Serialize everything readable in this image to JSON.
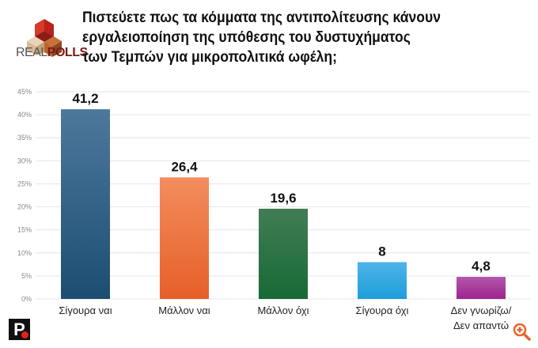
{
  "logo": {
    "text_light": "REAL",
    "text_bold": "POLLS"
  },
  "title": "Πιστεύετε πως τα κόμματα της αντιπολίτευσης κάνουν\nεργαλειοποίηση της υπόθεσης του δυστυχήματος\nτων Τεμπών για μικροπολιτικά ωφέλη;",
  "publisher_logo": "P",
  "zoom_icon": "zoom-in-icon",
  "chart_data": {
    "type": "bar",
    "title": "Πιστεύετε πως τα κόμματα της αντιπολίτευσης κάνουν εργαλειοποίηση της υπόθεσης του δυστυχήματος των Τεμπών για μικροπολιτικά ωφέλη;",
    "categories": [
      "Σίγουρα ναι",
      "Μάλλον ναι",
      "Μάλλον όχι",
      "Σίγουρα όχι",
      "Δεν γνωρίζω/\nΔεν απαντώ"
    ],
    "values": [
      41.2,
      26.4,
      19.6,
      8,
      4.8
    ],
    "data_labels": [
      "41,2",
      "26,4",
      "19,6",
      "8",
      "4,8"
    ],
    "colors": [
      [
        "#4d789c",
        "#1c4e72"
      ],
      [
        "#f28d5e",
        "#e75f28"
      ],
      [
        "#417d54",
        "#186a36"
      ],
      [
        "#4fb3e8",
        "#1c9edb"
      ],
      [
        "#b356ab",
        "#9e248e"
      ]
    ],
    "ylim": [
      0,
      45
    ],
    "yticks": [
      "0%",
      "5%",
      "10%",
      "15%",
      "20%",
      "25%",
      "30%",
      "35%",
      "40%",
      "45%"
    ],
    "grid": true
  }
}
